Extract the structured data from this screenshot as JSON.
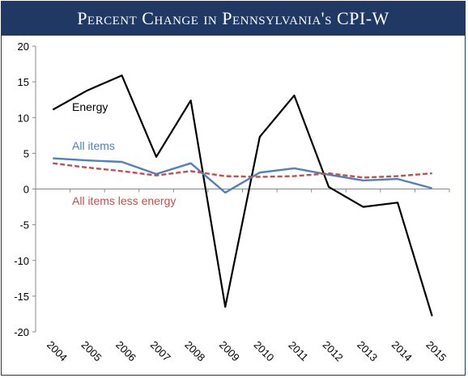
{
  "chart_data": {
    "type": "line",
    "title": "Percent Change in Pennsylvania's CPI-W",
    "x": [
      "2004",
      "2005",
      "2006",
      "2007",
      "2008",
      "2009",
      "2010",
      "2011",
      "2012",
      "2013",
      "2014",
      "2015"
    ],
    "ylim": [
      -20,
      20
    ],
    "yticks": [
      20,
      15,
      10,
      5,
      0,
      -5,
      -10,
      -15,
      -20
    ],
    "grid": false,
    "series": [
      {
        "name": "Energy",
        "color": "#000000",
        "style": "solid",
        "values": [
          11.1,
          13.8,
          15.9,
          4.5,
          12.4,
          -16.5,
          7.3,
          13.1,
          0.3,
          -2.5,
          -1.9,
          -17.8
        ]
      },
      {
        "name": "All items",
        "color": "#4f81bd",
        "style": "solid",
        "values": [
          4.3,
          4.0,
          3.8,
          2.1,
          3.6,
          -0.5,
          2.3,
          2.9,
          2.0,
          1.2,
          1.4,
          0.1
        ]
      },
      {
        "name": "All items less energy",
        "color": "#c0504d",
        "style": "dashed",
        "values": [
          3.6,
          3.0,
          2.5,
          1.9,
          2.5,
          1.8,
          1.7,
          1.8,
          2.2,
          1.6,
          1.8,
          2.2
        ]
      }
    ]
  }
}
